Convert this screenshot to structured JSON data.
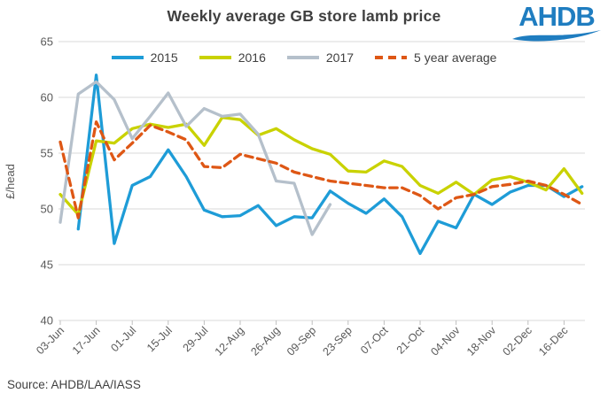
{
  "header": {
    "title": "Weekly average GB store lamb price",
    "logo_text": "AHDB"
  },
  "legend": {
    "position": "top",
    "items": [
      {
        "label": "2015",
        "color": "#1e9cd7",
        "dashed": false
      },
      {
        "label": "2016",
        "color": "#c9d200",
        "dashed": false
      },
      {
        "label": "2017",
        "color": "#b5c0cb",
        "dashed": false
      },
      {
        "label": "5 year average",
        "color": "#de5715",
        "dashed": true
      }
    ]
  },
  "y_axis": {
    "label": "£/head",
    "ticks": [
      65,
      60,
      55,
      50,
      45,
      40
    ],
    "min": 40,
    "max": 65
  },
  "x_axis": {
    "tick_labels": [
      "03-Jun",
      "17-Jun",
      "01-Jul",
      "15-Jul",
      "29-Jul",
      "12-Aug",
      "26-Aug",
      "09-Sep",
      "23-Sep",
      "07-Oct",
      "21-Oct",
      "04-Nov",
      "18-Nov",
      "02-Dec",
      "16-Dec"
    ]
  },
  "source": "Source: AHDB/LAA/IASS",
  "colors": {
    "series_2015": "#1e9cd7",
    "series_2016": "#c9d200",
    "series_2017": "#b5c0cb",
    "series_5yr_avg": "#de5715",
    "gridline": "#d9d9d9",
    "tick_mark": "#bfbfbf",
    "axis_text": "#595959",
    "title_text": "#3f3f3f",
    "logo_blue": "#1f7dc0"
  },
  "chart_data": {
    "type": "line",
    "title": "Weekly average GB store lamb price",
    "ylabel": "£/head",
    "ylim": [
      40,
      65
    ],
    "grid": "horizontal",
    "legend_position": "top",
    "x": [
      "03-Jun",
      "10-Jun",
      "17-Jun",
      "24-Jun",
      "01-Jul",
      "08-Jul",
      "15-Jul",
      "22-Jul",
      "29-Jul",
      "05-Aug",
      "12-Aug",
      "19-Aug",
      "26-Aug",
      "02-Sep",
      "09-Sep",
      "16-Sep",
      "23-Sep",
      "30-Sep",
      "07-Oct",
      "14-Oct",
      "21-Oct",
      "28-Oct",
      "04-Nov",
      "11-Nov",
      "18-Nov",
      "25-Nov",
      "02-Dec",
      "09-Dec",
      "16-Dec",
      "23-Dec"
    ],
    "series": [
      {
        "name": "2015",
        "color": "#1e9cd7",
        "dashed": false,
        "values": [
          null,
          48.2,
          62.0,
          46.9,
          52.1,
          52.9,
          55.3,
          52.9,
          49.9,
          49.3,
          49.4,
          50.3,
          48.5,
          49.3,
          49.2,
          51.6,
          50.5,
          49.6,
          50.9,
          49.3,
          46.0,
          48.9,
          48.3,
          51.3,
          50.4,
          51.5,
          52.1,
          52.1,
          51.1,
          52.0
        ]
      },
      {
        "name": "2016",
        "color": "#c9d200",
        "dashed": false,
        "values": [
          51.3,
          49.5,
          56.1,
          55.9,
          57.2,
          57.6,
          57.3,
          57.6,
          55.7,
          58.2,
          58.0,
          56.6,
          57.2,
          56.2,
          55.4,
          54.9,
          53.4,
          53.3,
          54.3,
          53.8,
          52.1,
          51.4,
          52.4,
          51.3,
          52.6,
          52.9,
          52.4,
          51.7,
          53.6,
          51.4
        ]
      },
      {
        "name": "2017",
        "color": "#b5c0cb",
        "dashed": false,
        "values": [
          48.8,
          60.3,
          61.4,
          59.8,
          56.3,
          58.3,
          60.4,
          57.4,
          59.0,
          58.3,
          58.5,
          56.7,
          52.5,
          52.3,
          47.7,
          50.4,
          null,
          null,
          null,
          null,
          null,
          null,
          null,
          null,
          null,
          null,
          null,
          null,
          null,
          null
        ]
      },
      {
        "name": "5 year average",
        "color": "#de5715",
        "dashed": true,
        "values": [
          56.0,
          49.2,
          57.8,
          54.4,
          55.9,
          57.5,
          56.9,
          56.2,
          53.8,
          53.7,
          54.9,
          54.5,
          54.1,
          53.3,
          52.9,
          52.5,
          52.3,
          52.1,
          51.9,
          51.9,
          51.2,
          50.0,
          51.0,
          51.3,
          52.0,
          52.2,
          52.5,
          52.1,
          51.3,
          50.4
        ]
      }
    ]
  }
}
